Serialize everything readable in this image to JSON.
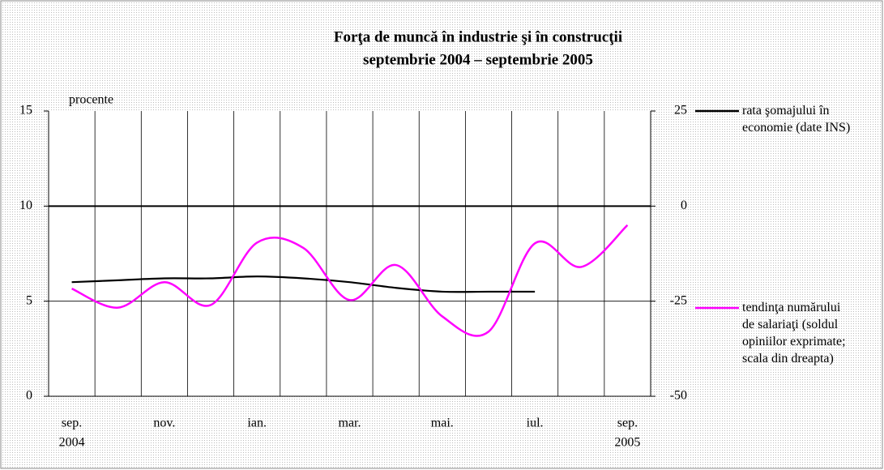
{
  "chart_data": {
    "type": "line",
    "title": "Forţa de muncă în industrie şi în construcţii",
    "subtitle": "septembrie 2004 – septembrie 2005",
    "y_label": "procente",
    "categories": [
      "sep.",
      null,
      "nov.",
      null,
      "ian.",
      null,
      "mar.",
      null,
      "mai.",
      null,
      "iul.",
      null,
      "sep."
    ],
    "category_years": [
      "2004",
      null,
      null,
      null,
      null,
      null,
      null,
      null,
      null,
      null,
      null,
      null,
      "2005"
    ],
    "series": [
      {
        "name": "rata şomajului în economie (date INS)",
        "color": "#000000",
        "axis": "y",
        "values": [
          6.0,
          6.1,
          6.2,
          6.2,
          6.3,
          6.2,
          6.0,
          5.7,
          5.5,
          5.5,
          5.5,
          null,
          null
        ]
      },
      {
        "name": "tendinţa numărului de salariaţi (soldul opiniilor exprimate; scala din dreapta)",
        "color": "#ff00ff",
        "axis": "y2",
        "values": [
          -21.7,
          -26.7,
          -20,
          -26,
          -9.6,
          -11,
          -24.7,
          -15.5,
          -29,
          -33,
          -9.8,
          -16,
          -5
        ]
      }
    ],
    "ylim": [
      0,
      15
    ],
    "yticks": [
      0,
      5,
      10,
      15
    ],
    "y2lim": [
      -50,
      25
    ],
    "y2ticks": [
      -50,
      -25,
      0,
      25
    ],
    "grid": true
  }
}
